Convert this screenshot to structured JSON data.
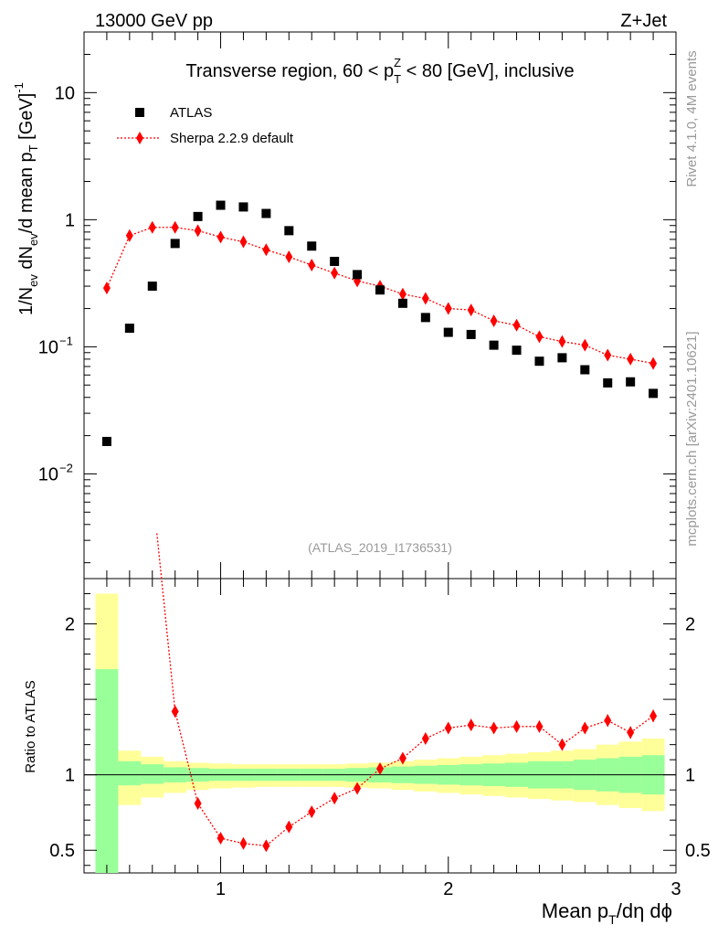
{
  "header": {
    "energy_label": "13000 GeV pp",
    "process_label": "Z+Jet",
    "plot_title_pre": "Transverse region, 60 < p",
    "plot_title_sup": "Z",
    "plot_title_sub": "T",
    "plot_title_post": " < 80 [GeV], inclusive",
    "watermark_rivet": "Rivet 4.1.0,  4M events",
    "watermark_site": "mcplots.cern.ch [arXiv:2401.10621]",
    "analysis_id": "(ATLAS_2019_I1736531)"
  },
  "axes": {
    "ylabel_main_a": "1/N",
    "ylabel_main_ev1": "ev",
    "ylabel_main_b": " dN",
    "ylabel_main_ev2": "ev",
    "ylabel_main_c": "/d mean p",
    "ylabel_main_t": "T",
    "ylabel_main_d": " [GeV]",
    "ylabel_main_sup": "-1",
    "ylabel_ratio": "Ratio to ATLAS",
    "xlabel_a": "Mean p",
    "xlabel_sub": "T",
    "xlabel_b": "/dη dϕ",
    "main_ticks": [
      {
        "value": 10,
        "label": "10"
      },
      {
        "value": 1,
        "label": "1"
      },
      {
        "value": 0.1,
        "base": "10",
        "exp": "−1"
      },
      {
        "value": 0.01,
        "base": "10",
        "exp": "−2"
      }
    ],
    "ratio_ticks_left": [
      {
        "value": 2,
        "label": "2"
      },
      {
        "value": 1,
        "label": "1"
      },
      {
        "value": 0.5,
        "label": "0.5"
      }
    ],
    "ratio_ticks_right": [
      {
        "value": 2,
        "label": "2"
      },
      {
        "value": 1,
        "label": "1"
      },
      {
        "value": 0.5,
        "label": "0.5"
      }
    ],
    "x_ticks": [
      {
        "value": 1,
        "label": "1"
      },
      {
        "value": 2,
        "label": "2"
      },
      {
        "value": 3,
        "label": "3"
      }
    ]
  },
  "legend": {
    "atlas_label": "ATLAS",
    "sherpa_label": "Sherpa 2.2.9 default"
  },
  "colors": {
    "data": "#000000",
    "mc": "#ff0000",
    "band_inner": "#99ff99",
    "band_outer": "#ffff99"
  },
  "chart_data": {
    "type": "scatter",
    "title": "Transverse region, 60 < pT^Z < 80 [GeV], inclusive",
    "xlabel": "Mean pT/dη dϕ",
    "ylabel": "1/Nev dNev/d mean pT [GeV]^-1",
    "x_range": [
      0.4,
      3.0
    ],
    "y_range_main": [
      0.0015,
      30
    ],
    "y_scale_main": "log",
    "y_range_ratio": [
      0.35,
      2.3
    ],
    "x": [
      0.5,
      0.6,
      0.7,
      0.8,
      0.9,
      1.0,
      1.1,
      1.2,
      1.3,
      1.4,
      1.5,
      1.6,
      1.7,
      1.8,
      1.9,
      2.0,
      2.1,
      2.2,
      2.3,
      2.4,
      2.5,
      2.6,
      2.7,
      2.8,
      2.9
    ],
    "series": [
      {
        "name": "ATLAS",
        "marker": "square",
        "values": [
          0.018,
          0.14,
          0.3,
          0.65,
          1.06,
          1.3,
          1.26,
          1.12,
          0.82,
          0.62,
          0.47,
          0.37,
          0.28,
          0.22,
          0.17,
          0.13,
          0.125,
          0.103,
          0.094,
          0.077,
          0.082,
          0.066,
          0.052,
          0.053,
          0.043
        ]
      },
      {
        "name": "Sherpa 2.2.9 default",
        "marker": "diamond",
        "line": "dotted",
        "values": [
          0.29,
          0.75,
          0.87,
          0.87,
          0.82,
          0.73,
          0.67,
          0.58,
          0.51,
          0.44,
          0.38,
          0.33,
          0.3,
          0.26,
          0.24,
          0.2,
          0.195,
          0.16,
          0.148,
          0.12,
          0.11,
          0.103,
          0.086,
          0.08,
          0.074
        ]
      }
    ],
    "ratio": {
      "x": [
        0.8,
        0.9,
        1.0,
        1.1,
        1.2,
        1.3,
        1.4,
        1.5,
        1.6,
        1.7,
        1.8,
        1.9,
        2.0,
        2.1,
        2.2,
        2.3,
        2.4,
        2.5,
        2.6,
        2.7,
        2.8,
        2.9
      ],
      "values": [
        1.42,
        0.81,
        0.58,
        0.545,
        0.53,
        0.655,
        0.755,
        0.845,
        0.91,
        1.04,
        1.11,
        1.24,
        1.31,
        1.33,
        1.31,
        1.32,
        1.32,
        1.2,
        1.31,
        1.36,
        1.28,
        1.39
      ],
      "errors": [
        0,
        0,
        0,
        0,
        0,
        0,
        0,
        0,
        0,
        0,
        0,
        0,
        0.02,
        0.02,
        0.02,
        0.02,
        0.02,
        0.03,
        0.03,
        0.04,
        0.04,
        0.04
      ],
      "line_start": [
        0.72,
        2.6
      ]
    },
    "bands": {
      "edges": [
        0.45,
        0.55,
        0.65,
        0.75,
        0.85,
        0.95,
        1.05,
        1.15,
        1.25,
        1.35,
        1.45,
        1.55,
        1.65,
        1.75,
        1.85,
        1.95,
        2.05,
        2.15,
        2.25,
        2.35,
        2.45,
        2.55,
        2.65,
        2.75,
        2.85,
        2.95
      ],
      "inner": [
        [
          0.35,
          1.7
        ],
        [
          0.93,
          1.09
        ],
        [
          0.94,
          1.07
        ],
        [
          0.95,
          1.05
        ],
        [
          0.955,
          1.045
        ],
        [
          0.96,
          1.04
        ],
        [
          0.96,
          1.04
        ],
        [
          0.96,
          1.04
        ],
        [
          0.96,
          1.04
        ],
        [
          0.96,
          1.04
        ],
        [
          0.96,
          1.04
        ],
        [
          0.955,
          1.045
        ],
        [
          0.95,
          1.05
        ],
        [
          0.945,
          1.055
        ],
        [
          0.94,
          1.06
        ],
        [
          0.935,
          1.065
        ],
        [
          0.93,
          1.07
        ],
        [
          0.925,
          1.075
        ],
        [
          0.92,
          1.08
        ],
        [
          0.91,
          1.09
        ],
        [
          0.91,
          1.09
        ],
        [
          0.9,
          1.1
        ],
        [
          0.89,
          1.11
        ],
        [
          0.88,
          1.12
        ],
        [
          0.87,
          1.13
        ]
      ],
      "outer": [
        [
          0.35,
          2.2
        ],
        [
          0.8,
          1.16
        ],
        [
          0.85,
          1.12
        ],
        [
          0.88,
          1.09
        ],
        [
          0.9,
          1.08
        ],
        [
          0.91,
          1.075
        ],
        [
          0.915,
          1.07
        ],
        [
          0.92,
          1.07
        ],
        [
          0.92,
          1.07
        ],
        [
          0.92,
          1.07
        ],
        [
          0.92,
          1.07
        ],
        [
          0.915,
          1.075
        ],
        [
          0.91,
          1.08
        ],
        [
          0.9,
          1.09
        ],
        [
          0.89,
          1.1
        ],
        [
          0.88,
          1.11
        ],
        [
          0.87,
          1.12
        ],
        [
          0.86,
          1.13
        ],
        [
          0.85,
          1.14
        ],
        [
          0.84,
          1.15
        ],
        [
          0.83,
          1.16
        ],
        [
          0.82,
          1.17
        ],
        [
          0.8,
          1.2
        ],
        [
          0.78,
          1.22
        ],
        [
          0.76,
          1.24
        ]
      ]
    },
    "legend_position": "top-left"
  }
}
